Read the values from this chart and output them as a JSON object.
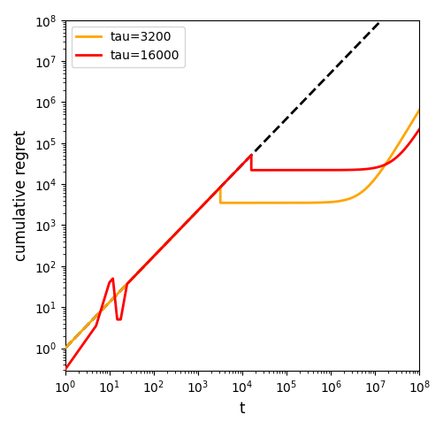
{
  "xlabel": "t",
  "ylabel": "cumulative regret",
  "ref_coeff": 1.0,
  "ref_exp": 1.12,
  "ref_color": "black",
  "ref_linestyle": "--",
  "ref_linewidth": 2.0,
  "series": [
    {
      "label": "tau=3200",
      "color": "#FFA500",
      "tau": 3200,
      "flat_y": 3500,
      "final_y": 650000.0,
      "post_alpha": 1.8,
      "linewidth": 2.0
    },
    {
      "label": "tau=16000",
      "color": "#FF0000",
      "tau": 16000,
      "flat_y": 22000,
      "final_y": 220000.0,
      "post_alpha": 1.8,
      "linewidth": 2.0
    }
  ],
  "xlim": [
    1.0,
    100000000.0
  ],
  "ylim": [
    0.28,
    100000000.0
  ],
  "figsize": [
    5.02,
    4.86
  ],
  "dpi": 100,
  "legend_loc": "upper left",
  "legend_fontsize": 10
}
